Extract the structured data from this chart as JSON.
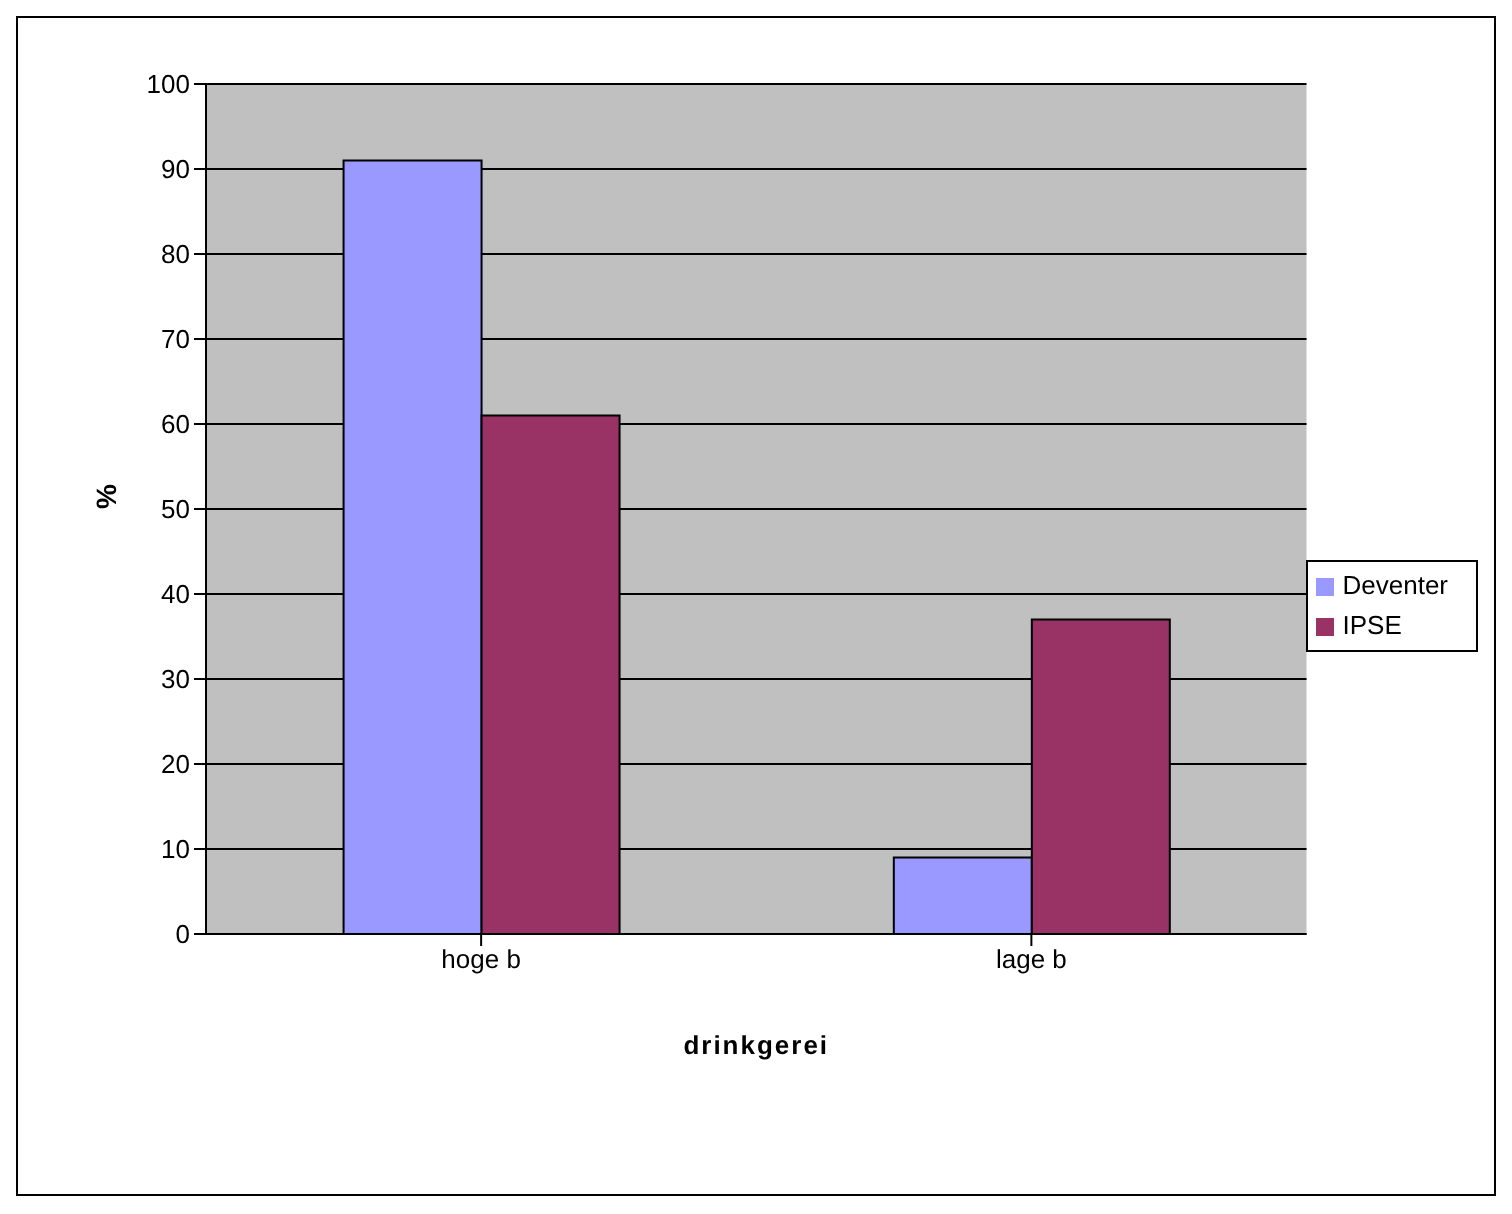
{
  "chart_data": {
    "type": "bar",
    "xlabel": "drinkgerei",
    "ylabel": "%",
    "categories": [
      "hoge b",
      "lage b"
    ],
    "series": [
      {
        "name": "Deventer",
        "color": "#9999ff",
        "values": [
          91,
          9
        ]
      },
      {
        "name": "IPSE",
        "color": "#993366",
        "values": [
          61,
          37
        ]
      }
    ],
    "ylim": [
      0,
      100
    ],
    "yticks": [
      0,
      10,
      20,
      30,
      40,
      50,
      60,
      70,
      80,
      90,
      100
    ],
    "grid": "y",
    "legend": "right"
  }
}
